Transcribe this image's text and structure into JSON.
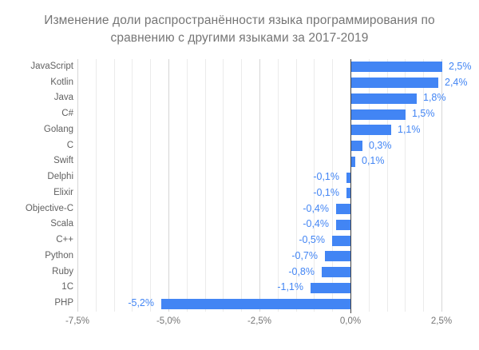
{
  "chart_data": {
    "type": "bar",
    "orientation": "horizontal",
    "title": "Изменение доли распространённости языка программирования по сравнению с другими языками за 2017-2019",
    "categories": [
      "JavaScript",
      "Kotlin",
      "Java",
      "C#",
      "Golang",
      "C",
      "Swift",
      "Delphi",
      "Elixir",
      "Objective-C",
      "Scala",
      "C++",
      "Python",
      "Ruby",
      "1C",
      "PHP"
    ],
    "values": [
      2.5,
      2.4,
      1.8,
      1.5,
      1.1,
      0.3,
      0.1,
      -0.1,
      -0.1,
      -0.4,
      -0.4,
      -0.5,
      -0.7,
      -0.8,
      -1.1,
      -5.2
    ],
    "value_labels": [
      "2,5%",
      "2,4%",
      "1,8%",
      "1,5%",
      "1,1%",
      "0,3%",
      "0,1%",
      "-0,1%",
      "-0,1%",
      "-0,4%",
      "-0,4%",
      "-0,5%",
      "-0,7%",
      "-0,8%",
      "-1,1%",
      "-5,2%"
    ],
    "xlabel": "",
    "ylabel": "",
    "xlim": [
      -7.5,
      2.8
    ],
    "x_tick_values": [
      -7.5,
      -5.0,
      -2.5,
      0.0,
      2.5
    ],
    "x_tick_labels": [
      "-7,5%",
      "-5,0%",
      "-2,5%",
      "0,0%",
      "2,5%"
    ],
    "x_minor_step": 0.5,
    "grid": "on",
    "legend": "none",
    "data_labels": "outside-end"
  },
  "colors": {
    "background": "#ffffff",
    "bar": "#4285f4",
    "value_label": "#4285f4",
    "title": "#757575",
    "category_label": "#616161",
    "tick_label": "#757575",
    "grid_minor": "#ebebeb",
    "grid_major": "#d6d6d6",
    "zero_line": "#424242"
  }
}
